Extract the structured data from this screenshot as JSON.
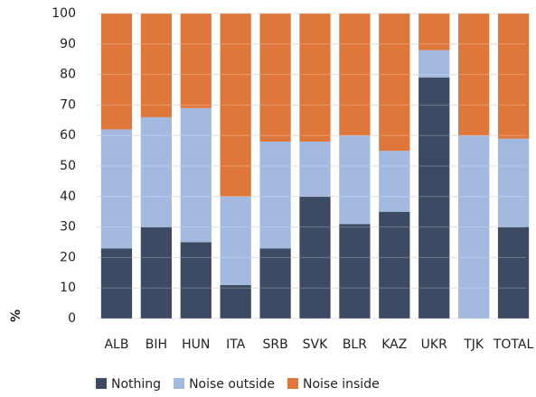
{
  "chart_data": {
    "type": "stacked_bar",
    "y_label": "%",
    "categories": [
      "ALB",
      "BIH",
      "HUN",
      "ITA",
      "SRB",
      "SVK",
      "BLR",
      "KAZ",
      "UKR",
      "TJK",
      "TOTAL"
    ],
    "series": [
      {
        "name": "Nothing",
        "color": "#3d4a63",
        "values": [
          23,
          30,
          25,
          11,
          23,
          40,
          31,
          35,
          79,
          0,
          30
        ]
      },
      {
        "name": "Noise outside",
        "color": "#a3b9df",
        "values": [
          39,
          36,
          44,
          29,
          35,
          18,
          29,
          20,
          9,
          60,
          29
        ]
      },
      {
        "name": "Noise inside",
        "color": "#e0773a",
        "values": [
          38,
          34,
          31,
          60,
          42,
          42,
          40,
          45,
          12,
          40,
          41
        ]
      }
    ],
    "ylim": [
      0,
      100
    ],
    "yticks": [
      0,
      10,
      20,
      30,
      40,
      50,
      60,
      70,
      80,
      90,
      100
    ],
    "grid": true
  }
}
